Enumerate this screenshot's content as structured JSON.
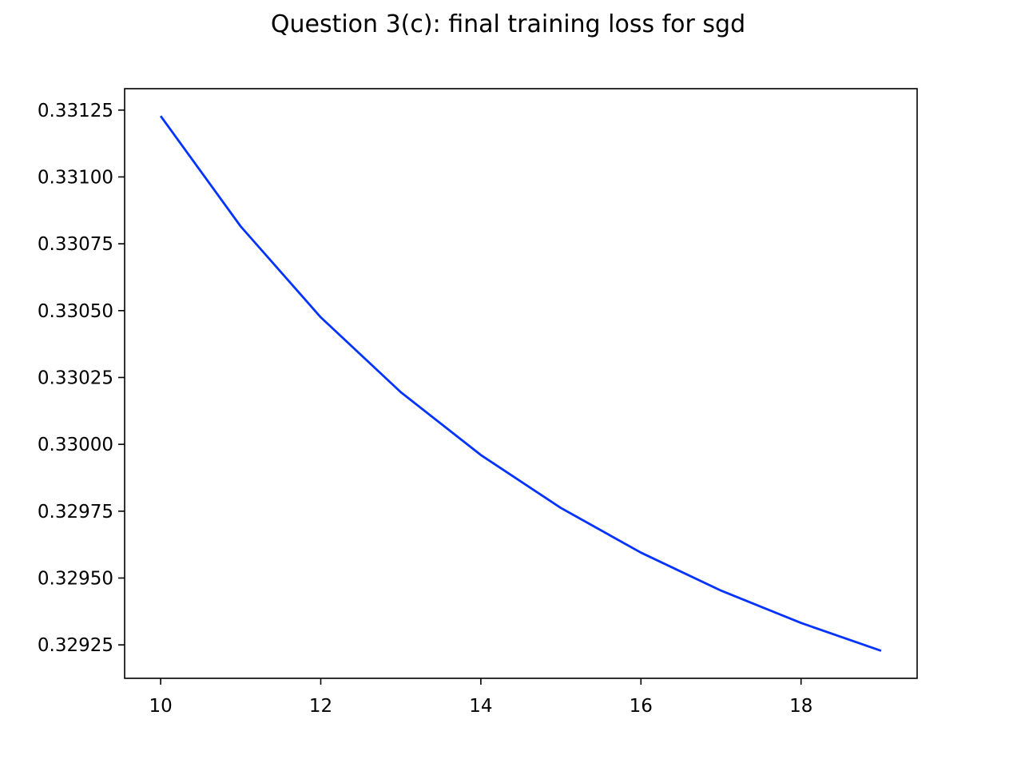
{
  "chart_data": {
    "type": "line",
    "title": "Question 3(c): final training loss for sgd",
    "xlabel": "",
    "ylabel": "",
    "x": [
      10,
      11,
      12,
      13,
      14,
      15,
      16,
      17,
      18,
      19
    ],
    "series": [
      {
        "values": [
          0.331228,
          0.330815,
          0.330475,
          0.330195,
          0.32996,
          0.329762,
          0.329595,
          0.329453,
          0.329332,
          0.329228
        ],
        "color": "#0433ff"
      }
    ],
    "xlim": [
      9.55,
      19.45
    ],
    "ylim": [
      0.329125,
      0.33133
    ],
    "xticks": [
      10,
      12,
      14,
      16,
      18
    ],
    "xtick_labels": [
      "10",
      "12",
      "14",
      "16",
      "18"
    ],
    "yticks": [
      0.32925,
      0.3295,
      0.32975,
      0.33,
      0.33025,
      0.3305,
      0.33075,
      0.331,
      0.33125
    ],
    "ytick_labels": [
      "0.32925",
      "0.32950",
      "0.32975",
      "0.33000",
      "0.33025",
      "0.33050",
      "0.33075",
      "0.33100",
      "0.33125"
    ],
    "grid": false,
    "legend": "none"
  }
}
